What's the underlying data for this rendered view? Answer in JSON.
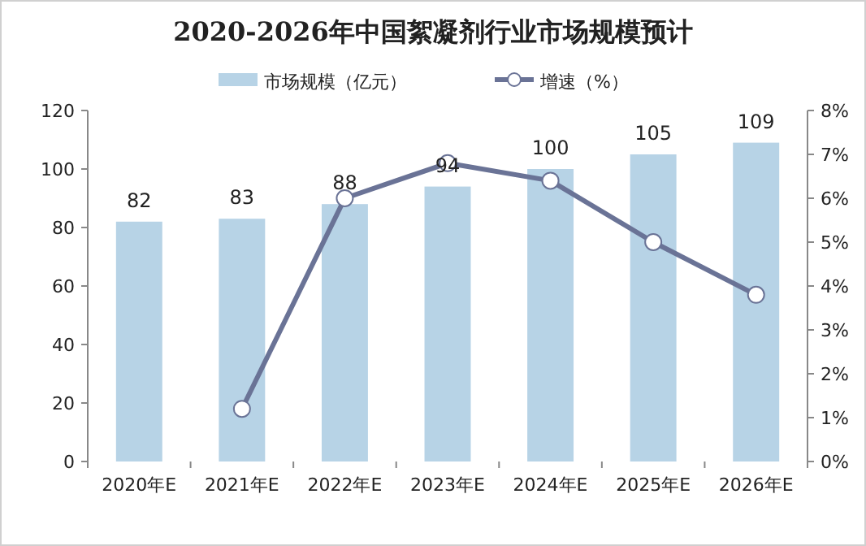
{
  "chart_data": {
    "type": "bar",
    "title": "2020-2026年中国絮凝剂行业市场规模预计",
    "categories": [
      "2020年E",
      "2021年E",
      "2022年E",
      "2023年E",
      "2024年E",
      "2025年E",
      "2026年E"
    ],
    "series": [
      {
        "name": "市场规模（亿元）",
        "color": "#b7d3e6",
        "values": [
          82,
          83,
          88,
          94,
          100,
          105,
          109
        ],
        "value_labels": [
          "82",
          "83",
          "88",
          "94",
          "100",
          "105",
          "109"
        ]
      },
      {
        "name": "增速（%）",
        "type": "line",
        "axis": "y2",
        "color": "#6a7396",
        "marker": "circle",
        "values": [
          null,
          1.2,
          6.0,
          6.8,
          6.4,
          5.0,
          3.8
        ]
      }
    ],
    "ylim": [
      0,
      120
    ],
    "yticks": [
      0,
      20,
      40,
      60,
      80,
      100,
      120
    ],
    "y2lim": [
      0,
      8
    ],
    "y2ticks": [
      {
        "value": 0,
        "label": "0%"
      },
      {
        "value": 1,
        "label": "1%"
      },
      {
        "value": 2,
        "label": "2%"
      },
      {
        "value": 3,
        "label": "3%"
      },
      {
        "value": 4,
        "label": "4%"
      },
      {
        "value": 5,
        "label": "5%"
      },
      {
        "value": 6,
        "label": "6%"
      },
      {
        "value": 7,
        "label": "7%"
      },
      {
        "value": 8,
        "label": "8%"
      }
    ],
    "legend": "top",
    "grid": false
  }
}
